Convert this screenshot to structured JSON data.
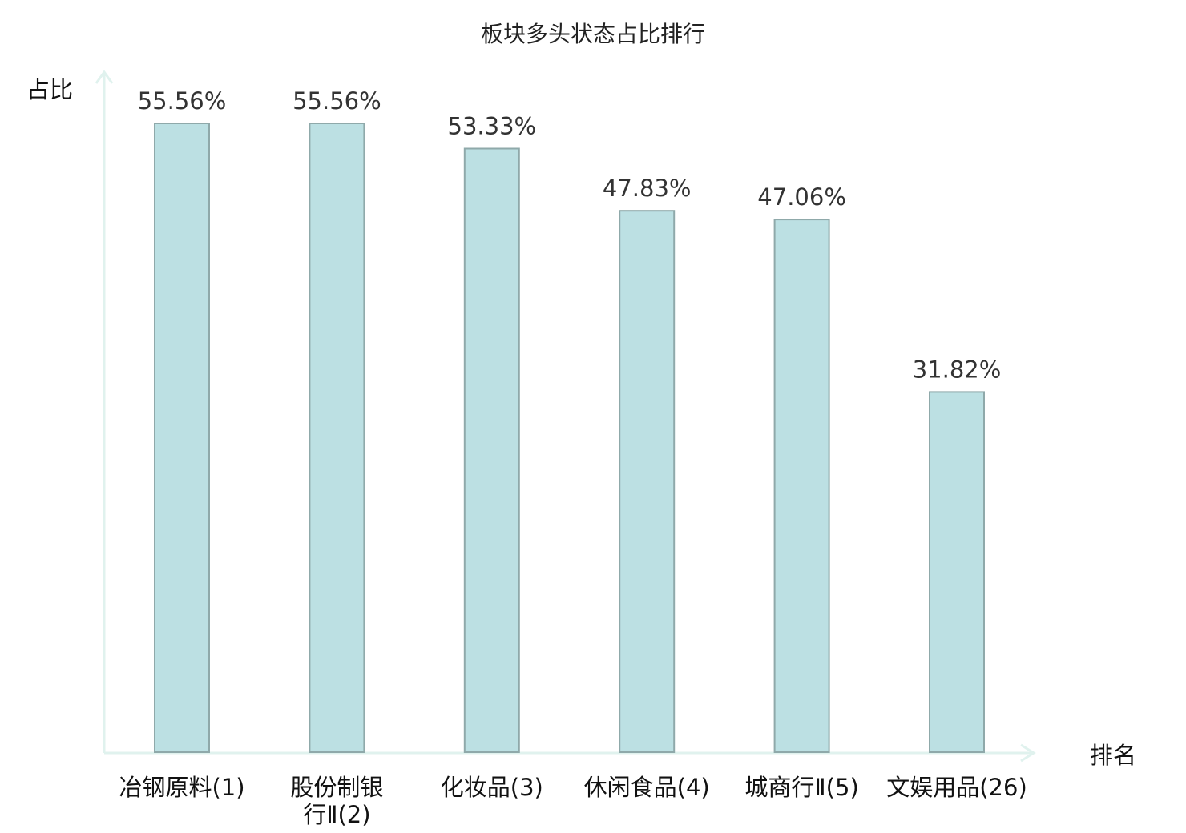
{
  "chart_data": {
    "type": "bar",
    "title": "板块多头状态占比排行",
    "ylabel": "占比",
    "xlabel": "排名",
    "ylim": [
      0,
      60
    ],
    "categories": [
      [
        "冶钢原料(1)"
      ],
      [
        "股份制银",
        "行Ⅱ(2)"
      ],
      [
        "化妆品(3)"
      ],
      [
        "休闲食品(4)"
      ],
      [
        "城商行Ⅱ(5)"
      ],
      [
        "文娱用品(26)"
      ]
    ],
    "values": [
      55.56,
      55.56,
      53.33,
      47.83,
      47.06,
      31.82
    ],
    "value_labels": [
      "55.56%",
      "55.56%",
      "53.33%",
      "47.83%",
      "47.06%",
      "31.82%"
    ],
    "highlight_index": 5,
    "grid": false,
    "colors": {
      "bar_fill": "#bce0e3",
      "bar_stroke": "#8fa9aa",
      "axis": "#e0f2ee",
      "highlight_text": "#e02020"
    }
  }
}
